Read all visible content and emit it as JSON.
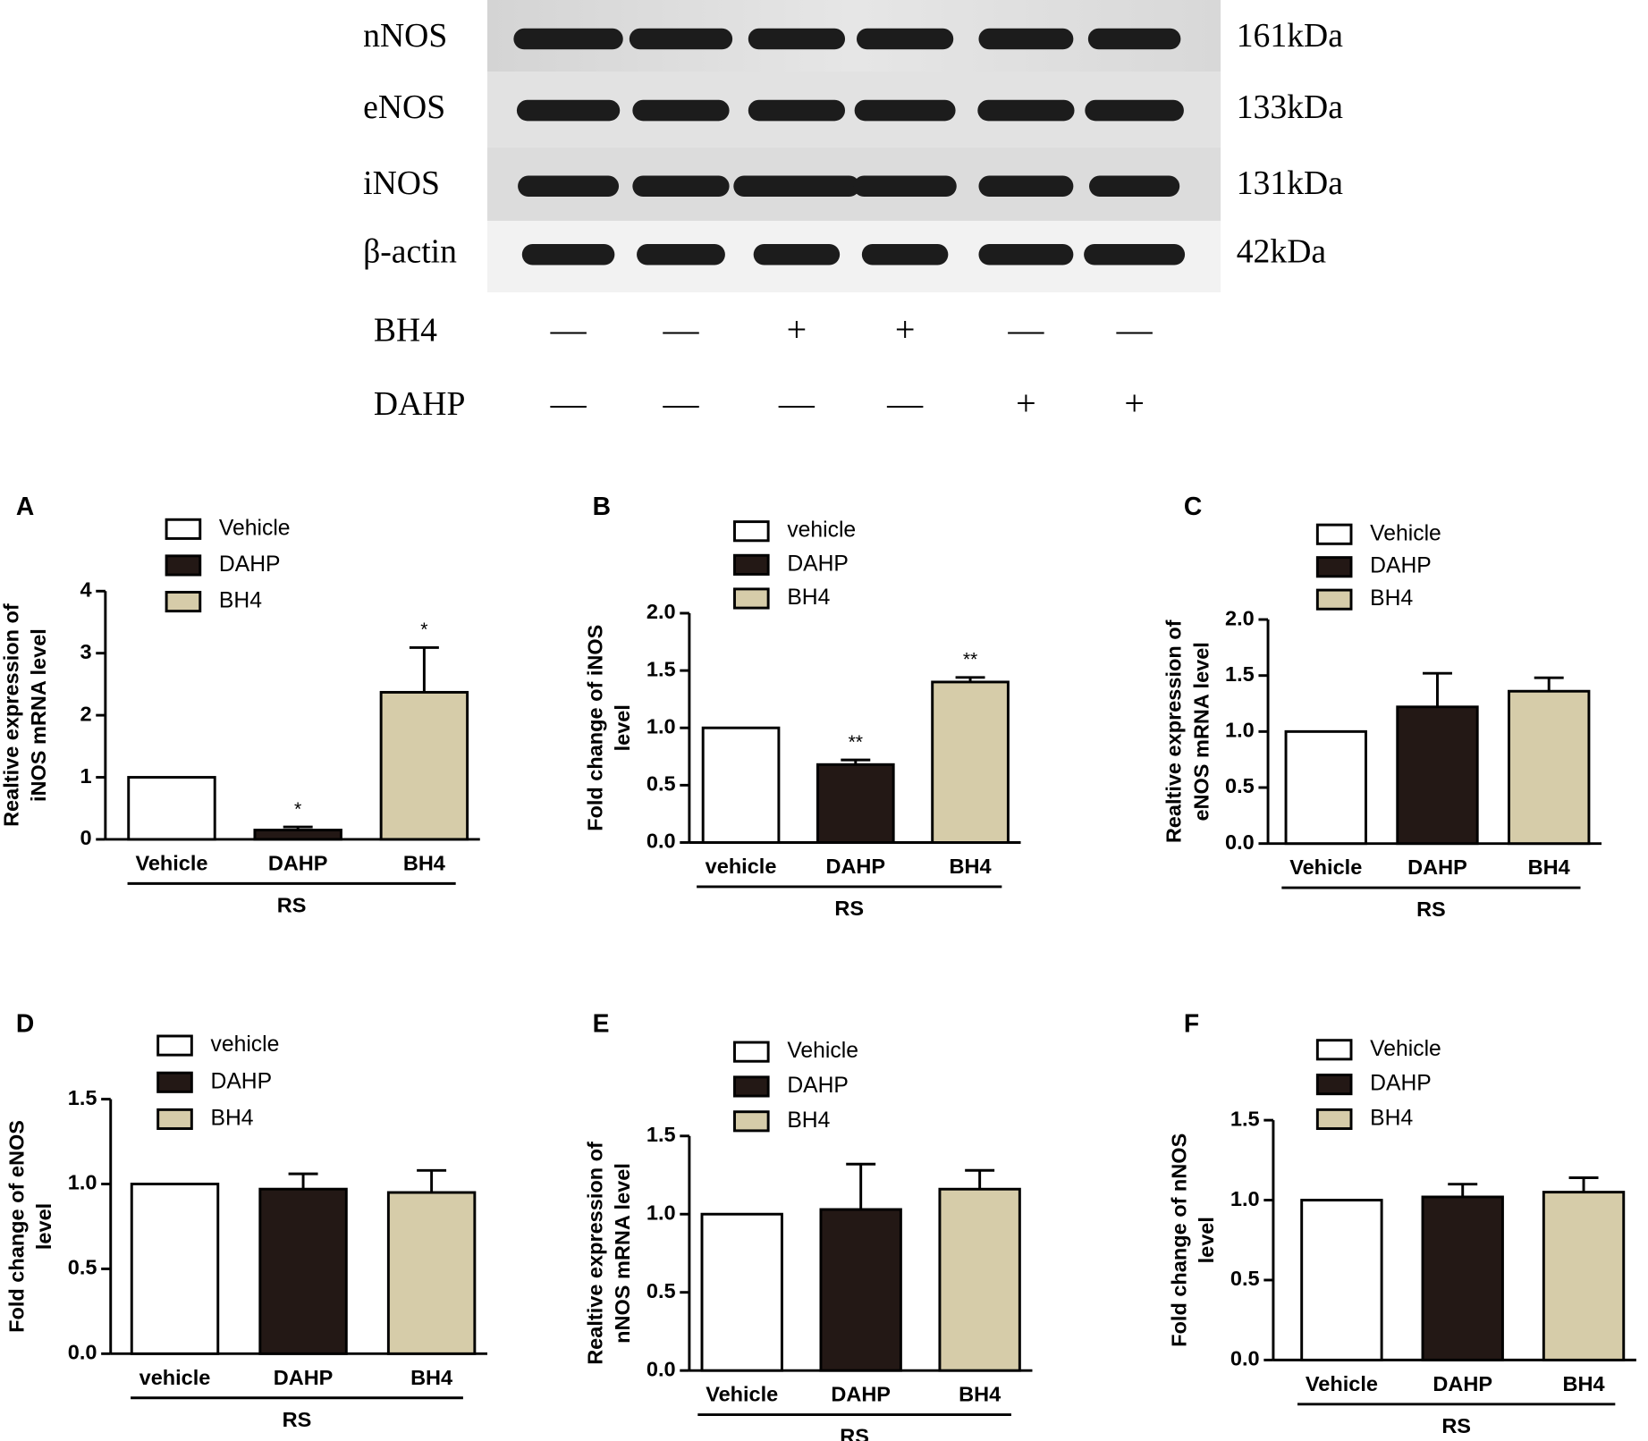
{
  "blot": {
    "rows": [
      {
        "label": "nNOS",
        "size": "161kDa"
      },
      {
        "label": "eNOS",
        "size": "133kDa"
      },
      {
        "label": "iNOS",
        "size": "131kDa"
      },
      {
        "label": "β-actin",
        "size": "42kDa"
      }
    ],
    "treatments": [
      {
        "label": "BH4",
        "signs": [
          "—",
          "—",
          "+",
          "+",
          "—",
          "—"
        ]
      },
      {
        "label": "DAHP",
        "signs": [
          "—",
          "—",
          "—",
          "—",
          "+",
          "+"
        ]
      }
    ]
  },
  "chart_data": [
    {
      "type": "bar",
      "panel": "A",
      "ylabel": [
        "Realtive expression of",
        "iNOS mRNA level"
      ],
      "categories": [
        "Vehicle",
        "DAHP",
        "BH4"
      ],
      "group": "RS",
      "values": [
        1,
        0.15,
        2.37
      ],
      "errors": [
        null,
        0.05,
        0.72
      ],
      "annotations": [
        null,
        "*",
        "*"
      ],
      "colors": [
        "#ffffff",
        "#231815",
        "#d6cca9"
      ],
      "ylim": [
        0,
        4
      ],
      "yticks": [
        0,
        1,
        2,
        3,
        4
      ]
    },
    {
      "type": "bar",
      "panel": "B",
      "ylabel": [
        "Fold change of iNOS",
        "level"
      ],
      "categories": [
        "vehicle",
        "DAHP",
        "BH4"
      ],
      "group": "RS",
      "values": [
        1,
        0.68,
        1.4
      ],
      "errors": [
        null,
        0.04,
        0.04
      ],
      "annotations": [
        null,
        "**",
        "**"
      ],
      "colors": [
        "#ffffff",
        "#231815",
        "#d6cca9"
      ],
      "ylim": [
        0,
        2
      ],
      "yticks": [
        {
          "value": 0,
          "label": "0.0"
        },
        {
          "value": 0.5,
          "label": "0.5"
        },
        {
          "value": 1,
          "label": "1.0"
        },
        {
          "value": 1.5,
          "label": "1.5"
        },
        {
          "value": 2,
          "label": "2.0"
        }
      ]
    },
    {
      "type": "bar",
      "panel": "C",
      "ylabel": [
        "Realtive expression of",
        "eNOS mRNA level"
      ],
      "categories": [
        "Vehicle",
        "DAHP",
        "BH4"
      ],
      "group": "RS",
      "values": [
        1,
        1.22,
        1.36
      ],
      "errors": [
        null,
        0.3,
        0.12
      ],
      "colors": [
        "#ffffff",
        "#231815",
        "#d6cca9"
      ],
      "ylim": [
        0,
        2
      ],
      "yticks": [
        {
          "value": 0,
          "label": "0.0"
        },
        {
          "value": 0.5,
          "label": "0.5"
        },
        {
          "value": 1,
          "label": "1.0"
        },
        {
          "value": 1.5,
          "label": "1.5"
        },
        {
          "value": 2,
          "label": "2.0"
        }
      ]
    },
    {
      "type": "bar",
      "panel": "D",
      "ylabel": [
        "Fold change of eNOS",
        "level"
      ],
      "categories": [
        "vehicle",
        "DAHP",
        "BH4"
      ],
      "group": "RS",
      "values": [
        1,
        0.97,
        0.95
      ],
      "errors": [
        null,
        0.09,
        0.13
      ],
      "colors": [
        "#ffffff",
        "#231815",
        "#d6cca9"
      ],
      "ylim": [
        0,
        1.5
      ],
      "yticks": [
        {
          "value": 0,
          "label": "0.0"
        },
        {
          "value": 0.5,
          "label": "0.5"
        },
        {
          "value": 1,
          "label": "1.0"
        },
        {
          "value": 1.5,
          "label": "1.5"
        }
      ]
    },
    {
      "type": "bar",
      "panel": "E",
      "ylabel": [
        "Realtive expression of",
        "nNOS mRNA level"
      ],
      "categories": [
        "Vehicle",
        "DAHP",
        "BH4"
      ],
      "group": "RS",
      "values": [
        1,
        1.03,
        1.16
      ],
      "errors": [
        null,
        0.29,
        0.12
      ],
      "colors": [
        "#ffffff",
        "#231815",
        "#d6cca9"
      ],
      "ylim": [
        0,
        1.5
      ],
      "yticks": [
        {
          "value": 0,
          "label": "0.0"
        },
        {
          "value": 0.5,
          "label": "0.5"
        },
        {
          "value": 1,
          "label": "1.0"
        },
        {
          "value": 1.5,
          "label": "1.5"
        }
      ]
    },
    {
      "type": "bar",
      "panel": "F",
      "ylabel": [
        "Fold change of nNOS",
        "level"
      ],
      "categories": [
        "Vehicle",
        "DAHP",
        "BH4"
      ],
      "group": "RS",
      "values": [
        1,
        1.02,
        1.05
      ],
      "errors": [
        null,
        0.08,
        0.09
      ],
      "colors": [
        "#ffffff",
        "#231815",
        "#d6cca9"
      ],
      "ylim": [
        0,
        1.5
      ],
      "yticks": [
        {
          "value": 0,
          "label": "0.0"
        },
        {
          "value": 0.5,
          "label": "0.5"
        },
        {
          "value": 1,
          "label": "1.0"
        },
        {
          "value": 1.5,
          "label": "1.5"
        }
      ]
    }
  ]
}
